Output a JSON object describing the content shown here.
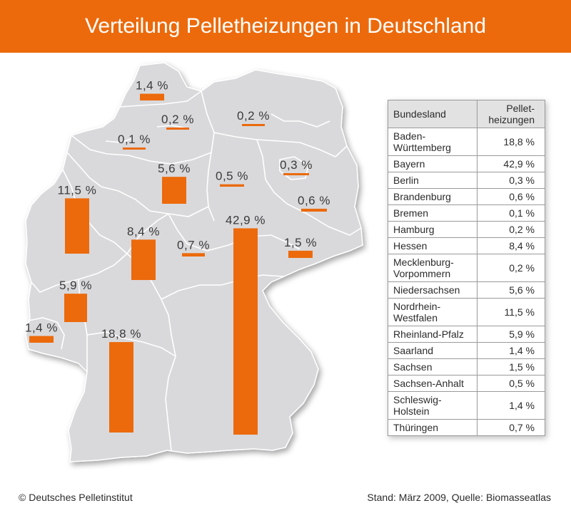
{
  "title": "Verteilung Pelletheizungen in Deutschland",
  "colors": {
    "accent": "#ec6a0c",
    "map_fill": "#d9d9dc",
    "border": "#ffffff"
  },
  "chart_data": {
    "type": "bar",
    "unit": "%",
    "categories": [
      "Baden-Württemberg",
      "Bayern",
      "Berlin",
      "Brandenburg",
      "Bremen",
      "Hamburg",
      "Hessen",
      "Mecklenburg-Vorpommern",
      "Niedersachsen",
      "Nordrhein-Westfalen",
      "Rheinland-Pfalz",
      "Saarland",
      "Sachsen",
      "Sachsen-Anhalt",
      "Schleswig-Holstein",
      "Thüringen"
    ],
    "values": [
      18.8,
      42.9,
      0.3,
      0.6,
      0.1,
      0.2,
      8.4,
      0.2,
      5.6,
      11.5,
      5.9,
      1.4,
      1.5,
      0.5,
      1.4,
      0.7
    ],
    "value_labels": [
      "18,8 %",
      "42,9 %",
      "0,3 %",
      "0,6 %",
      "0,1 %",
      "0,2 %",
      "8,4 %",
      "0,2 %",
      "5,6 %",
      "11,5 %",
      "5,9 %",
      "1,4 %",
      "1,5 %",
      "0,5 %",
      "1,4 %",
      "0,7 %"
    ]
  },
  "table": {
    "header_state": "Bundesland",
    "header_value": "Pellet-\nheizungen",
    "rows": [
      {
        "state": "Baden-\nWürttemberg",
        "value": "18,8 %"
      },
      {
        "state": "Bayern",
        "value": "42,9 %"
      },
      {
        "state": "Berlin",
        "value": "0,3 %"
      },
      {
        "state": "Brandenburg",
        "value": "0,6 %"
      },
      {
        "state": "Bremen",
        "value": "0,1 %"
      },
      {
        "state": "Hamburg",
        "value": "0,2 %"
      },
      {
        "state": "Hessen",
        "value": "8,4 %"
      },
      {
        "state": "Mecklenburg-\nVorpommern",
        "value": "0,2 %"
      },
      {
        "state": "Niedersachsen",
        "value": "5,6 %"
      },
      {
        "state": "Nordrhein-\nWestfalen",
        "value": "11,5 %"
      },
      {
        "state": "Rheinland-Pfalz",
        "value": "5,9 %"
      },
      {
        "state": "Saarland",
        "value": "1,4 %"
      },
      {
        "state": "Sachsen",
        "value": "1,5 %"
      },
      {
        "state": "Sachsen-Anhalt",
        "value": "0,5 %"
      },
      {
        "state": "Schleswig-\nHolstein",
        "value": "1,4 %"
      },
      {
        "state": "Thüringen",
        "value": "0,7 %"
      }
    ]
  },
  "footer": {
    "copyright": "© Deutsches Pelletinstitut",
    "source": "Stand: März 2009, Quelle: Biomasseatlas"
  }
}
